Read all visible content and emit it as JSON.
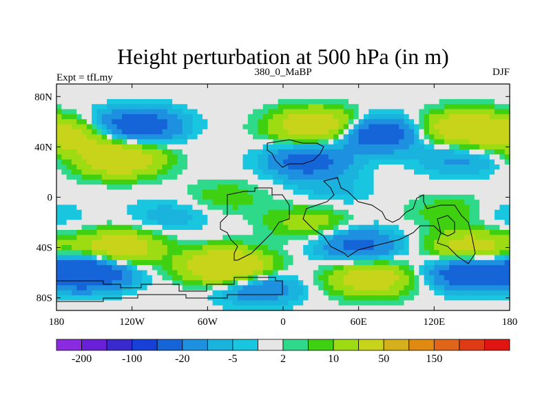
{
  "chart_data": {
    "type": "heatmap",
    "title": "Height perturbation at 500 hPa (in m)",
    "left_label": "Expt = tfLmy",
    "center_label": "380_0_MaBP",
    "right_label": "DJF",
    "x_ticks": [
      {
        "value": -180,
        "label": "180"
      },
      {
        "value": -120,
        "label": "120W"
      },
      {
        "value": -60,
        "label": "60W"
      },
      {
        "value": 0,
        "label": "0"
      },
      {
        "value": 60,
        "label": "60E"
      },
      {
        "value": 120,
        "label": "120E"
      },
      {
        "value": 180,
        "label": "180"
      }
    ],
    "y_ticks": [
      {
        "value": 80,
        "label": "80N"
      },
      {
        "value": 40,
        "label": "40N"
      },
      {
        "value": 0,
        "label": "0"
      },
      {
        "value": -40,
        "label": "40S"
      },
      {
        "value": -80,
        "label": "80S"
      }
    ],
    "xlim": [
      -180,
      180
    ],
    "ylim": [
      -90,
      90
    ],
    "colorbar": {
      "colors": [
        "#8a2be2",
        "#6a1fd9",
        "#3a2acd",
        "#1640d6",
        "#1565d8",
        "#1e90e0",
        "#1ab3dd",
        "#18c6df",
        "#e6e6e6",
        "#2ed98a",
        "#40d012",
        "#9ddc12",
        "#c8d41a",
        "#d6b01c",
        "#e08a12",
        "#e0641a",
        "#e03a14",
        "#e01410"
      ],
      "tick_labels": [
        "-200",
        "-100",
        "-20",
        "-5",
        "2",
        "10",
        "50",
        "150"
      ]
    },
    "field": {
      "description": "Contoured height perturbation (m) over longitude/latitude",
      "centers": [
        {
          "lon": -115,
          "lat": 57,
          "value": -35
        },
        {
          "lon": -130,
          "lat": 30,
          "value": 40
        },
        {
          "lon": -170,
          "lat": 48,
          "value": 25
        },
        {
          "lon": 25,
          "lat": 57,
          "value": 40
        },
        {
          "lon": 20,
          "lat": 28,
          "value": -28
        },
        {
          "lon": 75,
          "lat": 50,
          "value": -35
        },
        {
          "lon": 145,
          "lat": 55,
          "value": 40
        },
        {
          "lon": 140,
          "lat": 30,
          "value": -12
        },
        {
          "lon": -130,
          "lat": -40,
          "value": 35
        },
        {
          "lon": -155,
          "lat": -60,
          "value": -45
        },
        {
          "lon": -45,
          "lat": -55,
          "value": 50
        },
        {
          "lon": -20,
          "lat": -72,
          "value": -20
        },
        {
          "lon": 70,
          "lat": -65,
          "value": 32
        },
        {
          "lon": 60,
          "lat": -38,
          "value": -25
        },
        {
          "lon": 150,
          "lat": -60,
          "value": -40
        },
        {
          "lon": 150,
          "lat": -40,
          "value": 30
        },
        {
          "lon": 135,
          "lat": -12,
          "value": 10
        },
        {
          "lon": -45,
          "lat": 0,
          "value": 8
        },
        {
          "lon": 20,
          "lat": -20,
          "value": 15
        },
        {
          "lon": -90,
          "lat": -15,
          "value": -8
        },
        {
          "lon": 40,
          "lat": 5,
          "value": -6
        },
        {
          "lon": 170,
          "lat": -15,
          "value": -6
        }
      ]
    }
  }
}
